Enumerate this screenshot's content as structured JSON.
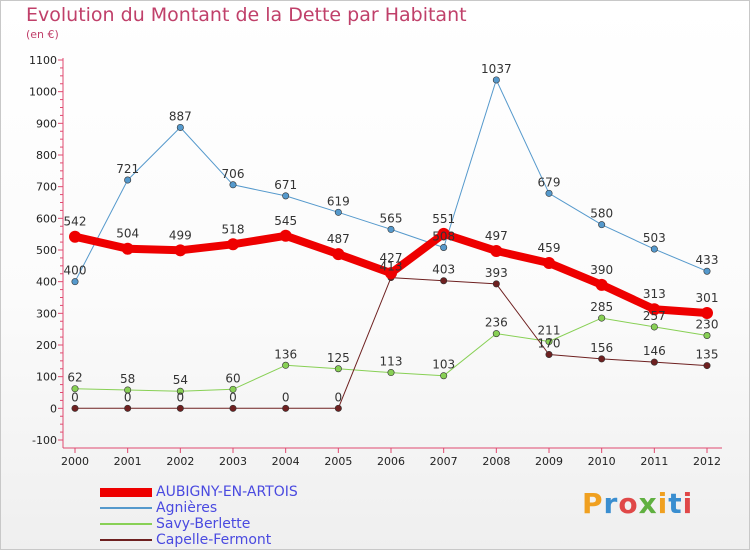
{
  "header": {
    "title": "Evolution du Montant de la Dette par Habitant",
    "unit": "(en €)"
  },
  "logo": {
    "text": "Proxiti",
    "letters": [
      {
        "char": "P",
        "color": "#f0a020"
      },
      {
        "char": "r",
        "color": "#3a8ed0"
      },
      {
        "char": "o",
        "color": "#e04848"
      },
      {
        "char": "x",
        "color": "#60b040"
      },
      {
        "char": "i",
        "color": "#f0a020"
      },
      {
        "char": "t",
        "color": "#3a8ed0"
      },
      {
        "char": "i",
        "color": "#e04848"
      }
    ]
  },
  "chart_data": {
    "type": "line",
    "title": "Evolution du Montant de la Dette par Habitant",
    "subtitle": "(en €)",
    "xlabel": "",
    "ylabel": "",
    "x": [
      "2000",
      "2001",
      "2002",
      "2003",
      "2004",
      "2005",
      "2006",
      "2007",
      "2008",
      "2009",
      "2010",
      "2011",
      "2012"
    ],
    "ylim": [
      -100,
      1100
    ],
    "yticks": [
      -100,
      0,
      100,
      200,
      300,
      400,
      500,
      600,
      700,
      800,
      900,
      1000,
      1100
    ],
    "grid": false,
    "legend_position": "bottom-left",
    "series": [
      {
        "name": "AUBIGNY-EN-ARTOIS",
        "color": "#ee0000",
        "width": 8,
        "values": [
          542,
          504,
          499,
          518,
          545,
          487,
          427,
          551,
          497,
          459,
          390,
          313,
          301
        ]
      },
      {
        "name": "Agnières",
        "color": "#5599cc",
        "width": 1,
        "values": [
          400,
          721,
          887,
          706,
          671,
          619,
          565,
          508,
          1037,
          679,
          580,
          503,
          433
        ]
      },
      {
        "name": "Savy-Berlette",
        "color": "#88d055",
        "width": 1,
        "values": [
          62,
          58,
          54,
          60,
          136,
          125,
          113,
          103,
          236,
          211,
          285,
          257,
          230
        ]
      },
      {
        "name": "Capelle-Fermont",
        "color": "#6e2020",
        "width": 1,
        "values": [
          0,
          0,
          0,
          0,
          0,
          0,
          413,
          403,
          393,
          170,
          156,
          146,
          135
        ]
      }
    ]
  }
}
